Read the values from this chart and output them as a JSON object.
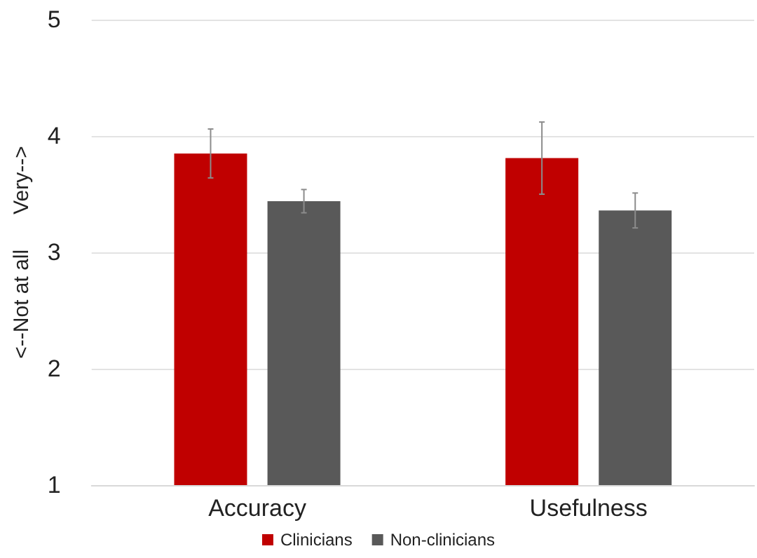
{
  "chart_data": {
    "type": "bar",
    "ylabel": "<--Not at all      Very-->",
    "categories": [
      "Accuracy",
      "Usefulness"
    ],
    "series": [
      {
        "name": "Clinicians",
        "color": "#c00000",
        "values": [
          3.85,
          3.81
        ],
        "errors": [
          0.21,
          0.31
        ]
      },
      {
        "name": "Non-clinicians",
        "color": "#595959",
        "values": [
          3.44,
          3.36
        ],
        "errors": [
          0.1,
          0.15
        ]
      }
    ],
    "ylim": [
      1,
      5
    ],
    "yticks": [
      1,
      2,
      3,
      4,
      5
    ],
    "grid": "y",
    "legend": "bottom"
  }
}
